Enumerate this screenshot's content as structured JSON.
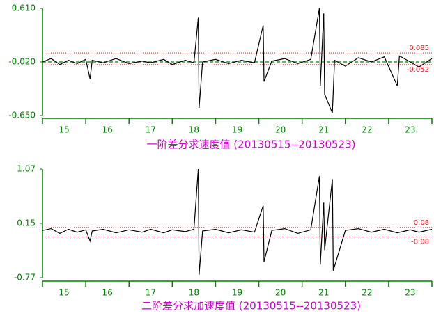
{
  "chart_data": [
    {
      "type": "line",
      "title": "一阶差分求速度值 (20130515--20130523)",
      "xlim": [
        14.5,
        23.5
      ],
      "xticks": [
        15,
        16,
        17,
        18,
        19,
        20,
        21,
        22,
        23
      ],
      "ylim": [
        -0.65,
        0.61
      ],
      "yticks": [
        {
          "value": 0.61,
          "label": "0.610"
        },
        {
          "value": -0.02,
          "label": "-0.020"
        },
        {
          "value": -0.65,
          "label": "-0.650"
        }
      ],
      "thresholds": [
        0.085,
        -0.052
      ],
      "threshold_color": "#e02020",
      "mean": -0.02,
      "mean_color": "#20a020",
      "series": [
        {
          "color": "#000000",
          "x": [
            14.5,
            14.7,
            14.9,
            15.1,
            15.3,
            15.5,
            15.6,
            15.65,
            15.9,
            16.2,
            16.5,
            16.8,
            17.0,
            17.3,
            17.5,
            17.8,
            18.0,
            18.1,
            18.12,
            18.2,
            18.5,
            18.8,
            19.1,
            19.4,
            19.6,
            19.62,
            19.8,
            20.1,
            20.4,
            20.7,
            20.9,
            20.92,
            21.0,
            21.02,
            21.2,
            21.25,
            21.5,
            21.8,
            22.1,
            22.4,
            22.7,
            22.75,
            23.0,
            23.2,
            23.5
          ],
          "values": [
            -0.02,
            0.02,
            -0.05,
            0.0,
            -0.04,
            0.01,
            -0.22,
            0.0,
            -0.03,
            0.02,
            -0.04,
            -0.01,
            -0.03,
            0.01,
            -0.05,
            0.0,
            -0.03,
            0.5,
            -0.56,
            -0.02,
            0.01,
            -0.04,
            0.0,
            -0.03,
            0.41,
            -0.25,
            -0.01,
            0.02,
            -0.04,
            0.01,
            0.61,
            -0.3,
            0.55,
            -0.4,
            -0.62,
            0.0,
            -0.07,
            0.03,
            -0.02,
            0.04,
            -0.3,
            0.05,
            -0.02,
            -0.08,
            0.02
          ]
        }
      ]
    },
    {
      "type": "line",
      "title": "二阶差分求加速度值 (20130515--20130523)",
      "xlim": [
        14.5,
        23.5
      ],
      "xticks": [
        15,
        16,
        17,
        18,
        19,
        20,
        21,
        22,
        23
      ],
      "ylim": [
        -0.77,
        1.07
      ],
      "yticks": [
        1.07,
        0.15,
        -0.77
      ],
      "thresholds": [
        0.08,
        -0.08
      ],
      "threshold_color": "#e02020",
      "series": [
        {
          "color": "#000000",
          "x": [
            14.5,
            14.7,
            14.9,
            15.1,
            15.3,
            15.5,
            15.6,
            15.65,
            15.9,
            16.2,
            16.5,
            16.8,
            17.0,
            17.3,
            17.5,
            17.8,
            18.0,
            18.1,
            18.12,
            18.2,
            18.5,
            18.8,
            19.1,
            19.4,
            19.6,
            19.62,
            19.8,
            20.1,
            20.4,
            20.7,
            20.9,
            20.92,
            21.0,
            21.02,
            21.2,
            21.22,
            21.5,
            21.8,
            22.1,
            22.4,
            22.7,
            23.0,
            23.2,
            23.5
          ],
          "values": [
            0.03,
            0.06,
            -0.02,
            0.05,
            0.0,
            0.04,
            -0.15,
            0.02,
            0.05,
            -0.01,
            0.04,
            0.0,
            0.05,
            -0.01,
            0.04,
            0.01,
            0.05,
            1.07,
            -0.72,
            0.02,
            0.05,
            -0.01,
            0.04,
            0.0,
            0.45,
            -0.5,
            0.03,
            0.06,
            -0.02,
            0.04,
            0.95,
            -0.55,
            0.5,
            -0.3,
            0.9,
            -0.65,
            0.03,
            0.06,
            0.0,
            0.05,
            -0.01,
            0.04,
            0.0,
            0.05
          ]
        }
      ]
    }
  ]
}
